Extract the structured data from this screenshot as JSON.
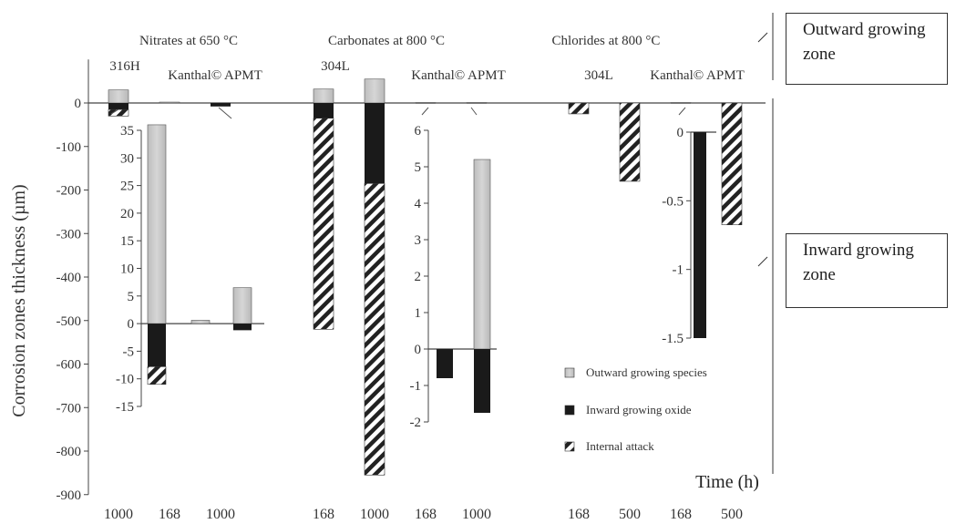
{
  "chart_data": {
    "type": "bar",
    "ylabel": "Corrosion zones thickness (µm)",
    "xlabel": "Time (h)",
    "ylim": [
      -900,
      100
    ],
    "yticks": [
      "0",
      "-100",
      "-200",
      "-300",
      "-400",
      "-500",
      "-600",
      "-700",
      "-800",
      "-900"
    ],
    "legend_position": "lower-right",
    "legend": [
      {
        "key": "outward",
        "label": "Outward growing species",
        "pattern": "light-gray"
      },
      {
        "key": "inward",
        "label": "Inward growing oxide",
        "pattern": "black"
      },
      {
        "key": "internal",
        "label": "Internal attack",
        "pattern": "hatched"
      }
    ],
    "groups": [
      {
        "title": "Nitrates at 650 °C",
        "alloys": [
          "316H",
          "Kanthal© APMT"
        ]
      },
      {
        "title": "Carbonates at 800 °C",
        "alloys": [
          "304L",
          "Kanthal© APMT"
        ]
      },
      {
        "title": "Chlorides at 800 °C",
        "alloys": [
          "304L",
          "Kanthal© APMT"
        ]
      }
    ],
    "categories": [
      "1000",
      "168",
      "1000",
      "168",
      "1000",
      "168",
      "1000",
      "168",
      "500",
      "168",
      "500"
    ],
    "bars": [
      {
        "outward": 30,
        "inward": 15,
        "internal": 15
      },
      {
        "outward": 2,
        "inward": 0,
        "internal": 0
      },
      {
        "outward": 0,
        "inward": 8,
        "internal": 0
      },
      {
        "outward": 32,
        "inward": 35,
        "internal": 485
      },
      {
        "outward": 55,
        "inward": 185,
        "internal": 670
      },
      {
        "outward": 1,
        "inward": 1,
        "internal": 0
      },
      {
        "outward": 1,
        "inward": 1,
        "internal": 0
      },
      {
        "outward": 0,
        "inward": 0,
        "internal": 25
      },
      {
        "outward": 0,
        "inward": 0,
        "internal": 180
      },
      {
        "outward": 1,
        "inward": 1,
        "internal": 0
      },
      {
        "outward": 0,
        "inward": 0,
        "internal": 280
      }
    ],
    "insets": [
      {
        "name": "nitrates-inset",
        "ylim": [
          -15,
          35
        ],
        "yticks": [
          "35",
          "30",
          "25",
          "20",
          "15",
          "10",
          "5",
          "0",
          "-5",
          "-10",
          "-15"
        ],
        "bars": [
          {
            "outward": 36,
            "inward": 7.8,
            "internal": 3.2
          },
          {
            "outward": 0.6,
            "inward": 0,
            "internal": 0
          },
          {
            "outward": 6.5,
            "inward": 1.2,
            "internal": 0
          }
        ]
      },
      {
        "name": "carbonates-inset",
        "ylim": [
          -2,
          6
        ],
        "yticks": [
          "6",
          "5",
          "4",
          "3",
          "2",
          "1",
          "0",
          "-1",
          "-2"
        ],
        "bars": [
          {
            "outward": 0,
            "inward": 0.8,
            "internal": 0
          },
          {
            "outward": 5.2,
            "inward": 1.75,
            "internal": 0
          }
        ]
      },
      {
        "name": "chlorides-inset",
        "ylim": [
          -1.5,
          0
        ],
        "yticks": [
          "0",
          "-0.5",
          "-1",
          "-1.5"
        ],
        "bars": [
          {
            "outward": 0,
            "inward": 1.5,
            "internal": 0
          }
        ]
      }
    ],
    "annotations": [
      "Outward growing zone",
      "Inward growing zone"
    ]
  }
}
